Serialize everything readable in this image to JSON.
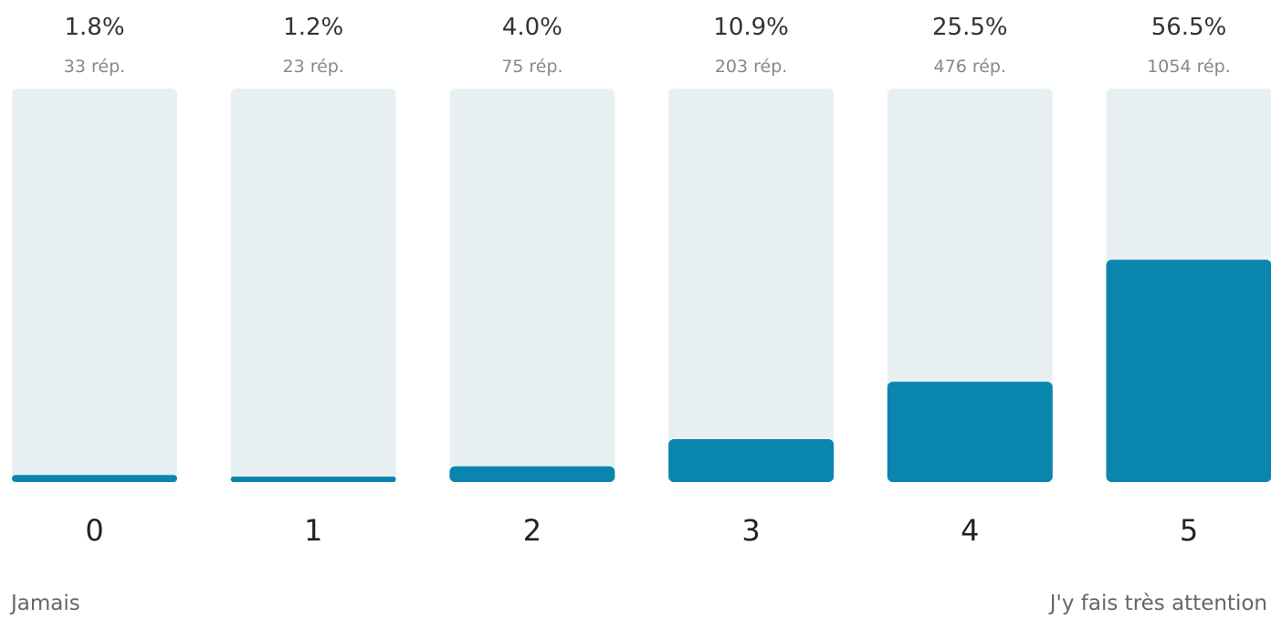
{
  "chart_data": {
    "type": "bar",
    "categories": [
      "0",
      "1",
      "2",
      "3",
      "4",
      "5"
    ],
    "values": [
      1.8,
      1.2,
      4.0,
      10.9,
      25.5,
      56.5
    ],
    "percent_labels": [
      "1.8%",
      "1.2%",
      "4.0%",
      "10.9%",
      "25.5%",
      "56.5%"
    ],
    "count_labels": [
      "33 rép.",
      "23 rép.",
      "75 rép.",
      "203 rép.",
      "476 rép.",
      "1054 rép."
    ],
    "ylim": [
      0,
      100
    ],
    "grid": false,
    "legend": "none"
  },
  "scale_labels": {
    "min": "Jamais",
    "max": "J'y fais très attention"
  },
  "colors": {
    "bar_fill": "#0a86ae",
    "track": "#e8f0f3"
  }
}
